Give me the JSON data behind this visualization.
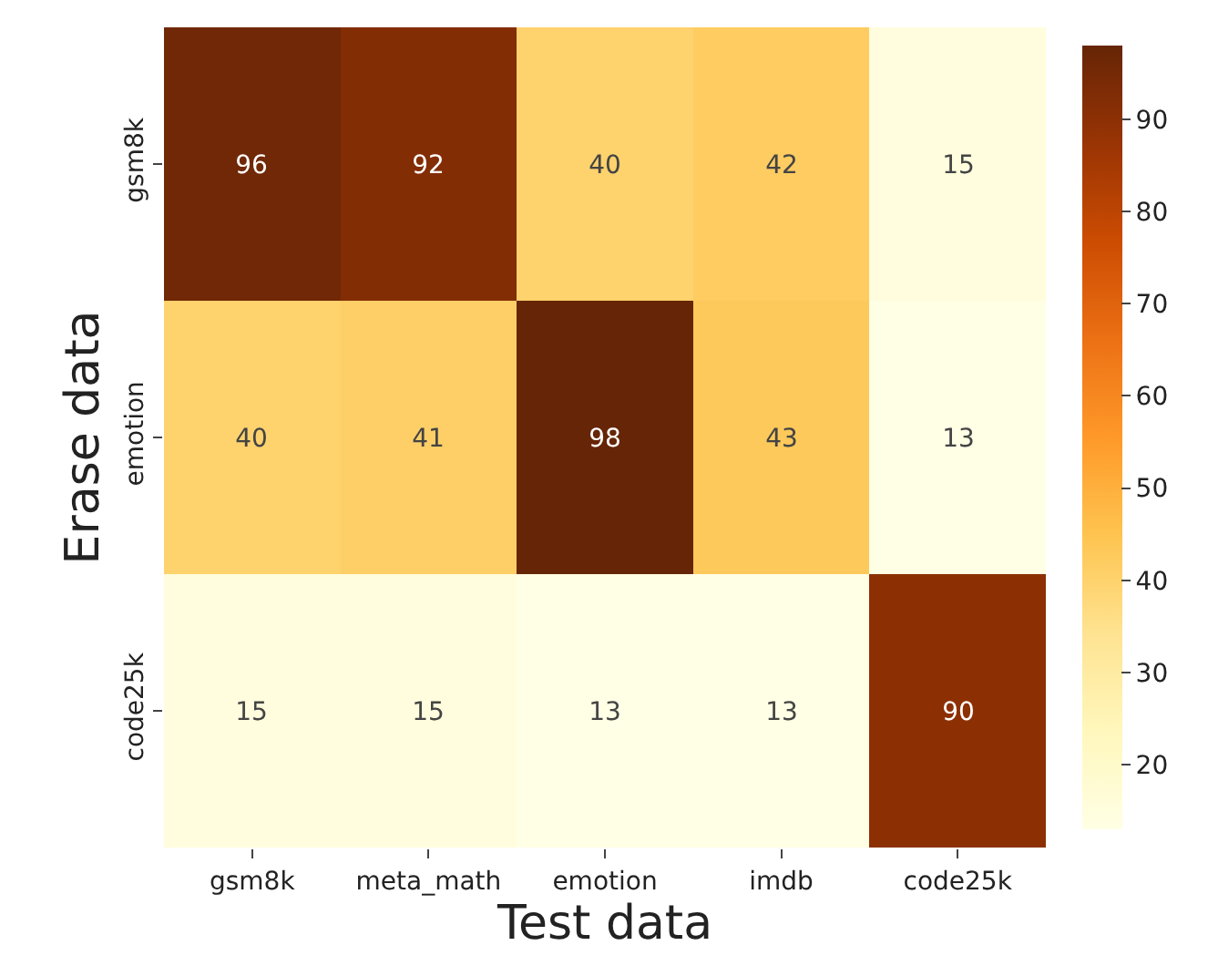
{
  "chart_data": {
    "type": "heatmap",
    "xlabel": "Test data",
    "ylabel": "Erase data",
    "categories": [
      "gsm8k",
      "meta_math",
      "emotion",
      "imdb",
      "code25k"
    ],
    "y_categories": [
      "gsm8k",
      "emotion",
      "code25k"
    ],
    "cells": [
      [
        96,
        92,
        40,
        42,
        15
      ],
      [
        40,
        41,
        98,
        43,
        13
      ],
      [
        15,
        15,
        13,
        13,
        90
      ]
    ],
    "clim": [
      13,
      98
    ],
    "cticks": [
      20,
      30,
      40,
      50,
      60,
      70,
      80,
      90
    ],
    "data_labels": true
  }
}
